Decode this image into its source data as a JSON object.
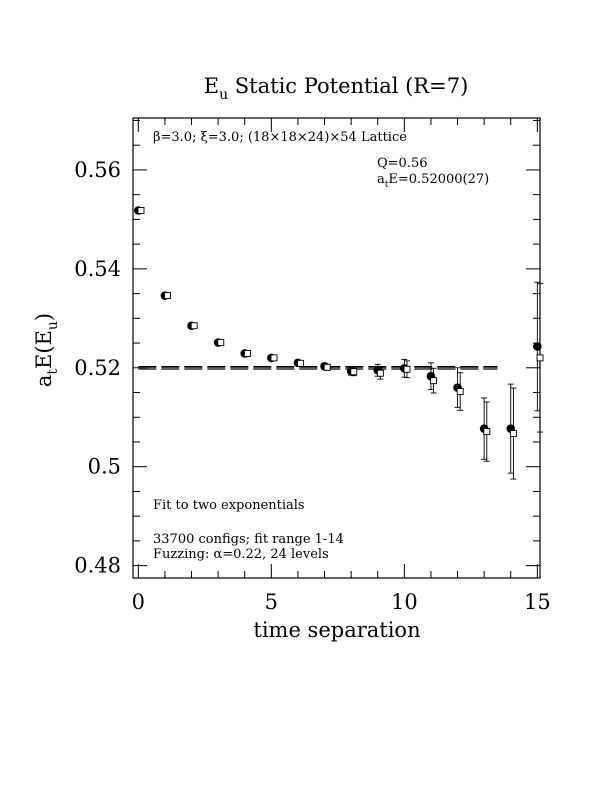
{
  "chart_data": {
    "type": "scatter",
    "title_main": "E",
    "title_sub": "u",
    "title_rest": " Static Potential (R=7)",
    "xlabel": "time separation",
    "ylabel_parts": {
      "a": "a",
      "t": "t",
      "e": "E(E",
      "u": "u",
      "close": ")"
    },
    "xlim": [
      -0.2,
      15.1
    ],
    "ylim": [
      0.4775,
      0.5705
    ],
    "x_ticks": [
      0,
      5,
      10,
      15
    ],
    "x_tick_labels": [
      "0",
      "5",
      "10",
      "15"
    ],
    "y_ticks": [
      0.48,
      0.5,
      0.52,
      0.54,
      0.56
    ],
    "y_tick_labels": [
      "0.48",
      "0.5",
      "0.52",
      "0.54",
      "0.56"
    ],
    "x_minor_step": 1,
    "y_minor_step": 0.005,
    "annotations": {
      "lattice": "β=3.0; ξ=3.0; (18×18×24)×54 Lattice",
      "q_value": "Q=0.56",
      "energy_prefix": "a",
      "energy_sub": "t",
      "energy_value": "E=0.52000(27)",
      "fit_type": "Fit to two exponentials",
      "configs": "33700 configs; fit range 1-14",
      "fuzzing": "Fuzzing: α=0.22, 24 levels"
    },
    "fit_lines": {
      "y_center": 0.52,
      "y_upper": 0.52027,
      "y_lower": 0.51973,
      "x_start": 0,
      "x_end": 13.5
    },
    "series": [
      {
        "marker": "filled-circle",
        "points": [
          {
            "x": 0,
            "y": 0.5518,
            "err": 0.0003
          },
          {
            "x": 1,
            "y": 0.5346,
            "err": 0.0004
          },
          {
            "x": 2,
            "y": 0.5285,
            "err": 0.0004
          },
          {
            "x": 3,
            "y": 0.5251,
            "err": 0.0004
          },
          {
            "x": 4,
            "y": 0.5229,
            "err": 0.0004
          },
          {
            "x": 5,
            "y": 0.522,
            "err": 0.0004
          },
          {
            "x": 6,
            "y": 0.521,
            "err": 0.0005
          },
          {
            "x": 7,
            "y": 0.5203,
            "err": 0.0006
          },
          {
            "x": 8,
            "y": 0.5193,
            "err": 0.0008
          },
          {
            "x": 9,
            "y": 0.5195,
            "err": 0.0012
          },
          {
            "x": 10,
            "y": 0.5199,
            "err": 0.0018
          },
          {
            "x": 11,
            "y": 0.5183,
            "err": 0.0027
          },
          {
            "x": 12,
            "y": 0.516,
            "err": 0.004
          },
          {
            "x": 13,
            "y": 0.5077,
            "err": 0.0062
          },
          {
            "x": 14,
            "y": 0.5077,
            "err": 0.009
          },
          {
            "x": 15,
            "y": 0.5243,
            "err": 0.013
          }
        ]
      },
      {
        "marker": "open-square",
        "points": [
          {
            "x": 0.1,
            "y": 0.5518,
            "err": 0.0003
          },
          {
            "x": 1.1,
            "y": 0.5346,
            "err": 0.0004
          },
          {
            "x": 2.1,
            "y": 0.5285,
            "err": 0.0004
          },
          {
            "x": 3.1,
            "y": 0.5251,
            "err": 0.0004
          },
          {
            "x": 4.1,
            "y": 0.5229,
            "err": 0.0004
          },
          {
            "x": 5.1,
            "y": 0.522,
            "err": 0.0004
          },
          {
            "x": 6.1,
            "y": 0.5209,
            "err": 0.0005
          },
          {
            "x": 7.1,
            "y": 0.5201,
            "err": 0.0006
          },
          {
            "x": 8.1,
            "y": 0.5192,
            "err": 0.0008
          },
          {
            "x": 9.1,
            "y": 0.5189,
            "err": 0.0012
          },
          {
            "x": 10.1,
            "y": 0.5197,
            "err": 0.0017
          },
          {
            "x": 11.1,
            "y": 0.5174,
            "err": 0.0025
          },
          {
            "x": 12.1,
            "y": 0.5152,
            "err": 0.0038
          },
          {
            "x": 13.1,
            "y": 0.5071,
            "err": 0.006
          },
          {
            "x": 14.1,
            "y": 0.5067,
            "err": 0.0092
          },
          {
            "x": 15.1,
            "y": 0.522,
            "err": 0.015
          }
        ]
      }
    ]
  }
}
